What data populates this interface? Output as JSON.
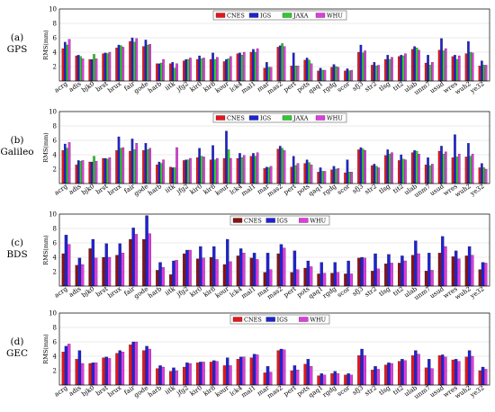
{
  "colors": {
    "CNES": "#e8151b",
    "IGS": "#1e23d2",
    "JAXA": "#2ecc2e",
    "WHU": "#e03be0",
    "CNES_bds": "#8a1212",
    "IGS_bds": "#1e23d2",
    "WHU_bds": "#e03be0"
  },
  "chart_data": [
    {
      "type": "bar",
      "label_letter": "(a)",
      "label_system": "GPS",
      "ylabel": "RMS(mm)",
      "ylim": [
        0,
        10
      ],
      "yticks": [
        2,
        4,
        6,
        8,
        10
      ],
      "categories": [
        "acrg",
        "adis",
        "bjk0",
        "brst",
        "brux",
        "fair",
        "gode",
        "harb",
        "iitk",
        "jfg2",
        "kir0",
        "kir8",
        "kour",
        "lck4",
        "mal1",
        "mar",
        "mas2",
        "pert",
        "pots",
        "qaq1",
        "rgdg",
        "scor",
        "sfj3",
        "str2",
        "tlsg",
        "tit2",
        "ulab",
        "unm7",
        "usud",
        "wres",
        "wuh2",
        "ye32"
      ],
      "series": [
        {
          "name": "CNES",
          "values": [
            4.5,
            3.5,
            3.0,
            3.8,
            4.6,
            5.5,
            4.8,
            2.4,
            2.4,
            2.8,
            3.0,
            3.0,
            2.7,
            3.8,
            4.0,
            1.8,
            4.7,
            2.1,
            2.9,
            1.4,
            1.9,
            1.4,
            4.0,
            2.2,
            3.0,
            3.4,
            4.4,
            2.5,
            4.3,
            3.4,
            3.8,
            2.1
          ]
        },
        {
          "name": "IGS",
          "values": [
            5.4,
            3.6,
            3.0,
            3.9,
            5.0,
            6.0,
            5.7,
            2.4,
            2.6,
            3.0,
            3.5,
            3.9,
            3.0,
            3.9,
            4.4,
            2.6,
            4.9,
            3.9,
            3.2,
            1.8,
            2.3,
            1.7,
            5.0,
            2.6,
            3.6,
            3.6,
            4.8,
            3.6,
            5.9,
            3.6,
            5.5,
            2.8
          ]
        },
        {
          "name": "JAXA",
          "values": [
            5.0,
            3.4,
            3.7,
            3.8,
            4.9,
            5.4,
            5.0,
            2.5,
            1.8,
            3.0,
            3.1,
            3.0,
            3.1,
            3.6,
            4.0,
            1.9,
            5.2,
            2.1,
            2.9,
            1.5,
            2.0,
            1.4,
            3.9,
            2.1,
            3.0,
            3.5,
            4.6,
            2.2,
            4.2,
            3.0,
            4.0,
            2.2
          ]
        },
        {
          "name": "WHU",
          "values": [
            5.8,
            3.1,
            3.1,
            4.0,
            4.7,
            5.9,
            5.1,
            3.0,
            2.4,
            3.2,
            3.2,
            3.3,
            3.4,
            4.0,
            4.5,
            1.9,
            4.8,
            2.1,
            2.4,
            1.5,
            1.9,
            1.5,
            4.2,
            2.2,
            3.3,
            3.8,
            4.3,
            2.6,
            4.5,
            3.5,
            3.9,
            2.2
          ]
        }
      ],
      "legend": "top-center"
    },
    {
      "type": "bar",
      "label_letter": "(b)",
      "label_system": "Galileo",
      "ylabel": "RMS(mm)",
      "ylim": [
        0,
        10
      ],
      "yticks": [
        2,
        4,
        6,
        8,
        10
      ],
      "categories": [
        "acrg",
        "adis",
        "bjk0",
        "brst",
        "brux",
        "fair",
        "gode",
        "harb",
        "iitk",
        "jfg2",
        "kir0",
        "kir8",
        "kour",
        "lck4",
        "mal1",
        "mar",
        "mas2",
        "pert",
        "pots",
        "qaq1",
        "rgdg",
        "scor",
        "sfj3",
        "str2",
        "tlsg",
        "tit2",
        "ulab",
        "unm7",
        "usud",
        "wres",
        "wuh2",
        "ye32"
      ],
      "series": [
        {
          "name": "CNES",
          "values": [
            4.6,
            2.6,
            3.0,
            3.5,
            4.6,
            4.5,
            4.6,
            2.6,
            2.3,
            3.2,
            3.6,
            3.3,
            3.5,
            3.5,
            3.8,
            2.1,
            4.8,
            2.3,
            2.8,
            1.6,
            1.9,
            1.5,
            4.7,
            2.5,
            3.9,
            3.2,
            4.3,
            2.6,
            4.5,
            3.6,
            3.7,
            2.2
          ]
        },
        {
          "name": "IGS",
          "values": [
            5.5,
            3.2,
            3.0,
            3.5,
            6.5,
            6.2,
            5.6,
            3.0,
            2.2,
            3.3,
            4.9,
            5.3,
            7.3,
            4.2,
            4.2,
            2.3,
            5.2,
            3.8,
            3.3,
            2.2,
            2.4,
            3.3,
            5.0,
            2.7,
            4.7,
            4.0,
            4.6,
            3.6,
            5.2,
            6.8,
            5.6,
            2.8
          ]
        },
        {
          "name": "JAXA",
          "values": [
            4.9,
            3.1,
            3.8,
            3.4,
            4.9,
            4.7,
            4.7,
            2.8,
            2.2,
            3.3,
            3.8,
            3.3,
            4.7,
            3.6,
            3.8,
            2.2,
            4.9,
            2.5,
            2.9,
            1.7,
            2.0,
            1.6,
            4.8,
            2.4,
            4.1,
            3.4,
            4.5,
            2.5,
            4.1,
            3.7,
            3.8,
            2.2
          ]
        },
        {
          "name": "WHU",
          "values": [
            5.7,
            3.2,
            3.1,
            3.6,
            5.0,
            5.6,
            4.9,
            3.3,
            5.0,
            3.5,
            3.7,
            3.5,
            3.5,
            3.9,
            4.3,
            2.4,
            4.6,
            2.8,
            2.6,
            1.7,
            2.1,
            1.6,
            4.6,
            2.2,
            4.3,
            3.3,
            4.1,
            2.7,
            4.4,
            4.1,
            4.1,
            2.0
          ]
        }
      ],
      "legend": "top-center"
    },
    {
      "type": "bar",
      "label_letter": "(c)",
      "label_system": "BDS",
      "ylabel": "RMS(mm)",
      "ylim": [
        0,
        10
      ],
      "yticks": [
        2,
        4,
        6,
        8,
        10
      ],
      "categories": [
        "acrg",
        "adis",
        "bjk0",
        "brst",
        "brux",
        "fair",
        "gode",
        "harb",
        "iitk",
        "jfg2",
        "kir0",
        "kir8",
        "kour",
        "lck4",
        "mal1",
        "mar",
        "mas2",
        "pert",
        "pots",
        "qaq1",
        "rgdg",
        "scor",
        "sfj3",
        "str2",
        "tlsg",
        "tit2",
        "ulab",
        "unm7",
        "usud",
        "wres",
        "wuh2",
        "ye32"
      ],
      "series": [
        {
          "name": "CNES",
          "values": [
            4.5,
            2.9,
            5.2,
            4.0,
            4.3,
            6.5,
            6.5,
            2.2,
            1.6,
            4.5,
            3.8,
            4.0,
            3.0,
            4.2,
            3.9,
            1.9,
            4.5,
            1.9,
            2.5,
            1.7,
            1.8,
            1.7,
            3.9,
            2.1,
            3.1,
            3.2,
            4.3,
            2.1,
            4.6,
            4.1,
            4.2,
            2.3
          ]
        },
        {
          "name": "IGS",
          "values": [
            7.1,
            3.9,
            6.5,
            5.9,
            5.9,
            8.1,
            9.8,
            3.3,
            3.5,
            5.0,
            5.5,
            5.5,
            6.5,
            5.2,
            4.6,
            4.6,
            5.8,
            4.9,
            3.5,
            3.3,
            3.3,
            3.5,
            4.0,
            4.5,
            4.4,
            4.2,
            6.3,
            4.6,
            6.9,
            4.9,
            5.5,
            3.3
          ]
        },
        {
          "name": "WHU",
          "values": [
            5.8,
            3.0,
            3.9,
            4.0,
            4.6,
            7.2,
            7.3,
            2.6,
            3.6,
            5.0,
            3.9,
            3.7,
            3.4,
            4.6,
            3.7,
            2.3,
            5.3,
            2.3,
            2.7,
            1.8,
            1.9,
            1.7,
            3.9,
            2.4,
            3.2,
            3.5,
            4.5,
            2.2,
            5.5,
            3.8,
            4.3,
            3.2
          ]
        }
      ],
      "legend": "top-center"
    },
    {
      "type": "bar",
      "label_letter": "(d)",
      "label_system": "GEC",
      "ylabel": "RMS(mm)",
      "ylim": [
        0,
        10
      ],
      "yticks": [
        2,
        4,
        6,
        8,
        10
      ],
      "categories": [
        "acrg",
        "adis",
        "bjk0",
        "brst",
        "brux",
        "fair",
        "gode",
        "harb",
        "iitk",
        "jfg2",
        "kir0",
        "kir8",
        "kour",
        "lck4",
        "mal1",
        "mar",
        "mas2",
        "pert",
        "pots",
        "qaq1",
        "rgdg",
        "scor",
        "sfj3",
        "str2",
        "tlsg",
        "tit2",
        "ulab",
        "unm7",
        "usud",
        "wres",
        "wuh2",
        "ye32"
      ],
      "series": [
        {
          "name": "CNES",
          "values": [
            4.6,
            3.6,
            3.0,
            3.8,
            4.4,
            5.6,
            4.8,
            2.3,
            1.9,
            2.5,
            3.1,
            3.2,
            2.7,
            3.6,
            3.8,
            1.7,
            4.8,
            2.0,
            2.9,
            1.3,
            1.6,
            1.4,
            4.1,
            2.1,
            2.8,
            3.3,
            4.1,
            2.4,
            4.1,
            3.5,
            3.9,
            2.0
          ]
        },
        {
          "name": "IGS",
          "values": [
            5.4,
            4.8,
            3.1,
            3.9,
            4.8,
            6.0,
            5.4,
            2.7,
            2.4,
            3.1,
            3.2,
            3.4,
            3.8,
            3.9,
            4.3,
            2.6,
            5.0,
            2.7,
            3.6,
            1.6,
            1.9,
            1.6,
            5.0,
            2.6,
            3.1,
            3.6,
            4.8,
            3.6,
            4.2,
            3.6,
            4.8,
            2.5
          ]
        },
        {
          "name": "WHU",
          "values": [
            5.7,
            3.0,
            3.1,
            3.7,
            4.6,
            6.0,
            5.0,
            2.5,
            2.0,
            3.0,
            3.2,
            3.3,
            2.7,
            3.9,
            4.2,
            1.8,
            4.9,
            2.1,
            2.6,
            1.4,
            1.6,
            1.4,
            4.1,
            2.2,
            3.0,
            3.4,
            4.3,
            2.3,
            3.9,
            3.3,
            4.0,
            2.2
          ]
        }
      ],
      "legend": "top-center"
    }
  ]
}
